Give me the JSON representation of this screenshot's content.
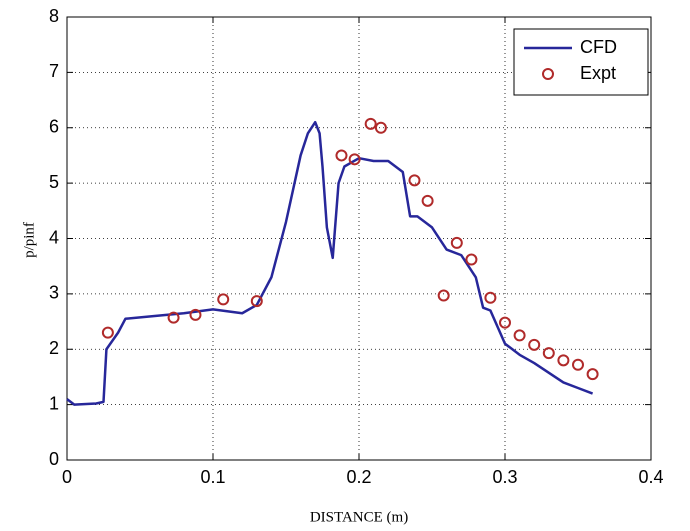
{
  "chart_data": {
    "type": "line",
    "xlabel": "DISTANCE (m)",
    "ylabel": "p/pinf",
    "xlim": [
      0,
      0.4
    ],
    "xticks": [
      0,
      0.1,
      0.2,
      0.3,
      0.4
    ],
    "ylim": [
      0,
      8
    ],
    "yticks": [
      0,
      1,
      2,
      3,
      4,
      5,
      6,
      7,
      8
    ],
    "grid": true,
    "legend": "upper right",
    "series": [
      {
        "name": "CFD",
        "type": "line",
        "color": "#27279a",
        "x": [
          0,
          0.005,
          0.02,
          0.025,
          0.027,
          0.035,
          0.04,
          0.06,
          0.08,
          0.1,
          0.12,
          0.13,
          0.14,
          0.15,
          0.16,
          0.165,
          0.17,
          0.173,
          0.175,
          0.178,
          0.182,
          0.186,
          0.19,
          0.2,
          0.21,
          0.22,
          0.23,
          0.235,
          0.24,
          0.25,
          0.26,
          0.27,
          0.28,
          0.285,
          0.29,
          0.3,
          0.31,
          0.32,
          0.34,
          0.35,
          0.36
        ],
        "values": [
          1.1,
          1.0,
          1.02,
          1.05,
          2.0,
          2.3,
          2.55,
          2.6,
          2.65,
          2.72,
          2.65,
          2.8,
          3.3,
          4.3,
          5.5,
          5.9,
          6.1,
          5.9,
          5.3,
          4.2,
          3.65,
          5.0,
          5.3,
          5.45,
          5.4,
          5.4,
          5.2,
          4.4,
          4.4,
          4.2,
          3.8,
          3.7,
          3.3,
          2.75,
          2.7,
          2.1,
          1.9,
          1.75,
          1.4,
          1.3,
          1.2
        ]
      },
      {
        "name": "Expt",
        "type": "scatter",
        "color": "#b02a2a",
        "x": [
          0.028,
          0.073,
          0.088,
          0.107,
          0.13,
          0.188,
          0.197,
          0.208,
          0.215,
          0.238,
          0.247,
          0.258,
          0.267,
          0.277,
          0.29,
          0.3,
          0.31,
          0.32,
          0.33,
          0.34,
          0.35,
          0.36
        ],
        "values": [
          2.3,
          2.57,
          2.62,
          2.9,
          2.87,
          5.5,
          5.43,
          6.07,
          6.0,
          5.05,
          4.68,
          2.97,
          3.92,
          3.62,
          2.93,
          2.48,
          2.25,
          2.08,
          1.93,
          1.8,
          1.72,
          1.55
        ]
      }
    ]
  }
}
